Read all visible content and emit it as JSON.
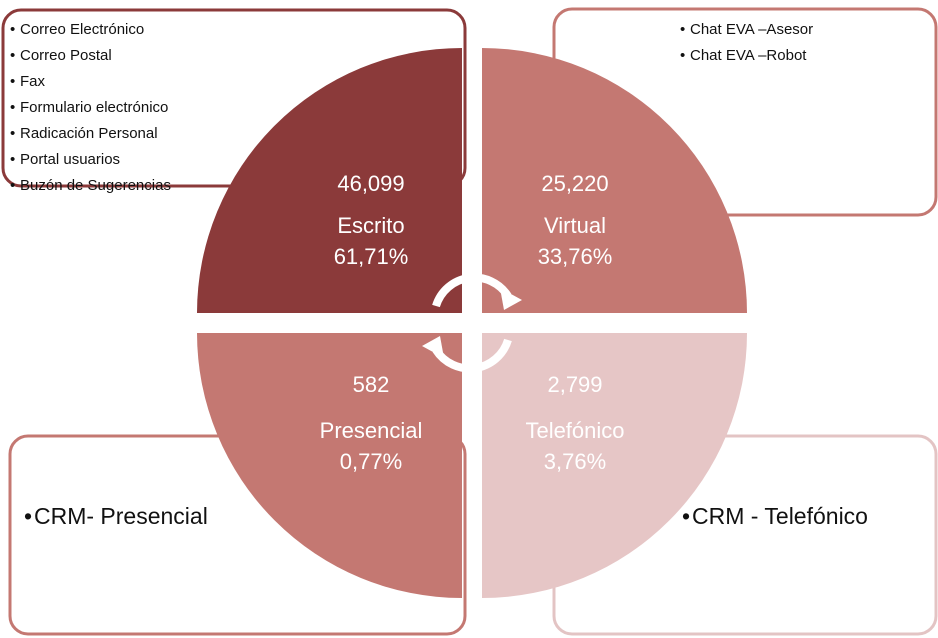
{
  "quadrants": [
    {
      "count": "46,099",
      "label": "Escrito",
      "percent": "61,71%",
      "items": [
        "Correo Electrónico",
        "Correo Postal",
        "Fax",
        "Formulario electrónico",
        "Radicación Personal",
        "Portal usuarios",
        "Buzón de Sugerencias"
      ]
    },
    {
      "count": "25,220",
      "label": "Virtual",
      "percent": "33,76%",
      "items": [
        "Chat EVA –Asesor",
        "Chat EVA –Robot"
      ]
    },
    {
      "count": "582",
      "label": "Presencial",
      "percent": "0,77%",
      "items": [
        "CRM- Presencial"
      ]
    },
    {
      "count": "2,799",
      "label": "Telefónico",
      "percent": "3,76%",
      "items": [
        "CRM - Telefónico"
      ]
    }
  ]
}
